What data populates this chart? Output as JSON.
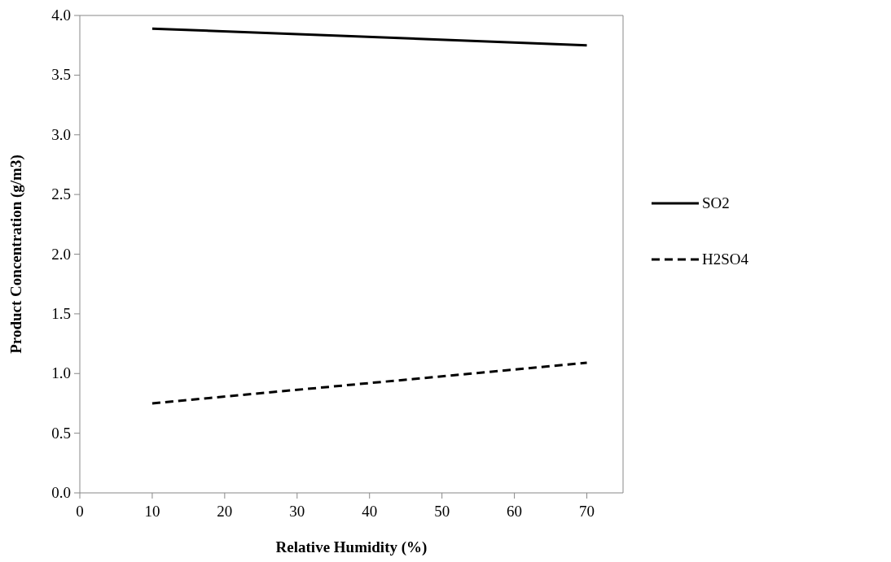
{
  "chart_data": {
    "type": "line",
    "xlabel": "Relative Humidity (%)",
    "ylabel": "Product Concentration (g/m3)",
    "xlim": [
      0,
      75
    ],
    "xticks": [
      0,
      10,
      20,
      30,
      40,
      50,
      60,
      70
    ],
    "ylim": [
      0,
      4
    ],
    "yticks": [
      {
        "value": 0,
        "label": "0.0"
      },
      {
        "value": 0.5,
        "label": "0.5"
      },
      {
        "value": 1,
        "label": "1.0"
      },
      {
        "value": 1.5,
        "label": "1.5"
      },
      {
        "value": 2,
        "label": "2.0"
      },
      {
        "value": 2.5,
        "label": "2.5"
      },
      {
        "value": 3,
        "label": "3.0"
      },
      {
        "value": 3.5,
        "label": "3.5"
      },
      {
        "value": 4,
        "label": "4.0"
      }
    ],
    "x": [
      10,
      70
    ],
    "grid": false,
    "legend": "right",
    "marker": "none",
    "series": [
      {
        "name": "SO2",
        "color": "#000000",
        "line_style": "solid",
        "values": [
          3.89,
          3.75
        ]
      },
      {
        "name": "H2SO4",
        "color": "#000000",
        "line_style": "dashed",
        "values": [
          0.75,
          1.09
        ]
      }
    ]
  }
}
